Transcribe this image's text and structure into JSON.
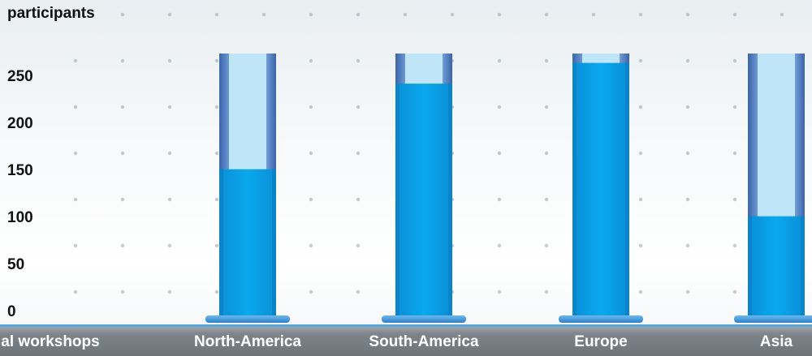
{
  "chart_data": {
    "type": "bar",
    "ylabel": "participants",
    "categories": [
      "al workshops",
      "North-America",
      "South-America",
      "Europe",
      "Asia"
    ],
    "values": [
      null,
      152,
      243,
      265,
      102
    ],
    "capacity": 275,
    "ylim": [
      0,
      275
    ],
    "yticks": [
      "0",
      "50",
      "100",
      "150",
      "200",
      "250"
    ],
    "colors": {
      "fill": "#0aa0e6",
      "empty": "#bfe6f8",
      "frame": "#3f73b4",
      "base": "#4b9fe0",
      "footer": "#767d82"
    }
  }
}
